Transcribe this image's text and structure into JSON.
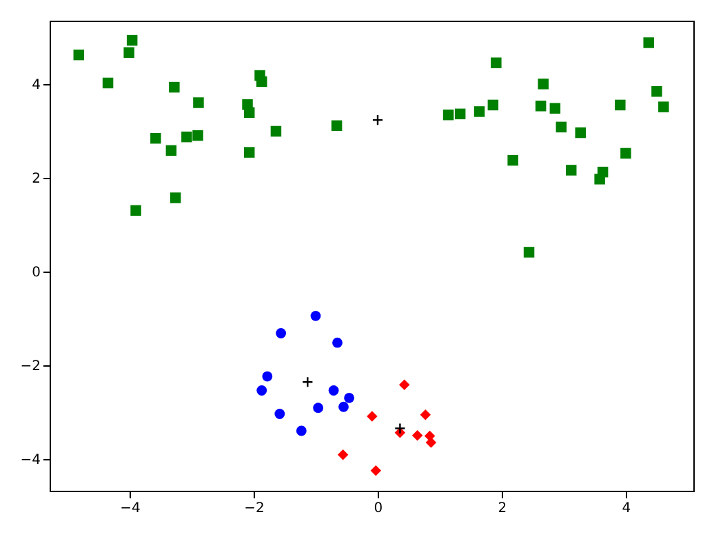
{
  "chart_data": {
    "type": "scatter",
    "xlim": [
      -5.29,
      5.09
    ],
    "ylim": [
      -4.68,
      5.35
    ],
    "xticks": [
      -4,
      -2,
      0,
      2,
      4
    ],
    "yticks": [
      -4,
      -2,
      0,
      2,
      4
    ],
    "grid": false,
    "series": [
      {
        "color": "#008000",
        "marker": "square",
        "x": [
          -4.82,
          -3.96,
          -4.01,
          -4.35,
          -3.28,
          -2.89,
          -3.58,
          -3.33,
          -3.08,
          -2.9,
          -3.26,
          -3.9,
          -1.9,
          -1.87,
          -2.1,
          -2.07,
          -1.64,
          -2.07,
          -0.66,
          1.91,
          4.37,
          2.67,
          1.14,
          1.33,
          1.64,
          1.86,
          2.63,
          2.86,
          2.96,
          3.27,
          3.91,
          4.5,
          4.61,
          2.18,
          3.12,
          4.0,
          3.63,
          3.58,
          2.44
        ],
        "values": [
          4.62,
          4.93,
          4.67,
          4.02,
          3.93,
          3.6,
          2.84,
          2.58,
          2.87,
          2.9,
          1.57,
          1.3,
          4.18,
          4.05,
          3.56,
          3.39,
          2.99,
          2.54,
          3.11,
          4.45,
          4.88,
          4.0,
          3.34,
          3.36,
          3.41,
          3.55,
          3.53,
          3.48,
          3.08,
          2.96,
          3.55,
          3.84,
          3.51,
          2.37,
          2.16,
          2.52,
          2.12,
          1.97,
          0.41
        ]
      },
      {
        "color": "#0000ff",
        "marker": "circle",
        "x": [
          -1.0,
          -1.56,
          -0.65,
          -1.78,
          -1.87,
          -0.71,
          -0.46,
          -0.96,
          -0.55,
          -1.58,
          -1.23
        ],
        "values": [
          -0.95,
          -1.32,
          -1.52,
          -2.24,
          -2.54,
          -2.54,
          -2.7,
          -2.91,
          -2.89,
          -3.04,
          -3.4
        ]
      },
      {
        "color": "#ff0000",
        "marker": "diamond",
        "x": [
          0.43,
          -0.09,
          0.77,
          0.36,
          0.64,
          0.84,
          0.86,
          -0.56,
          -0.03
        ],
        "values": [
          -2.42,
          -3.09,
          -3.06,
          -3.44,
          -3.5,
          -3.51,
          -3.65,
          -3.91,
          -4.25
        ]
      },
      {
        "color": "#000000",
        "marker": "cross",
        "x": [
          0.0,
          -1.13,
          0.36
        ],
        "values": [
          3.23,
          -2.36,
          -3.35
        ]
      }
    ]
  }
}
